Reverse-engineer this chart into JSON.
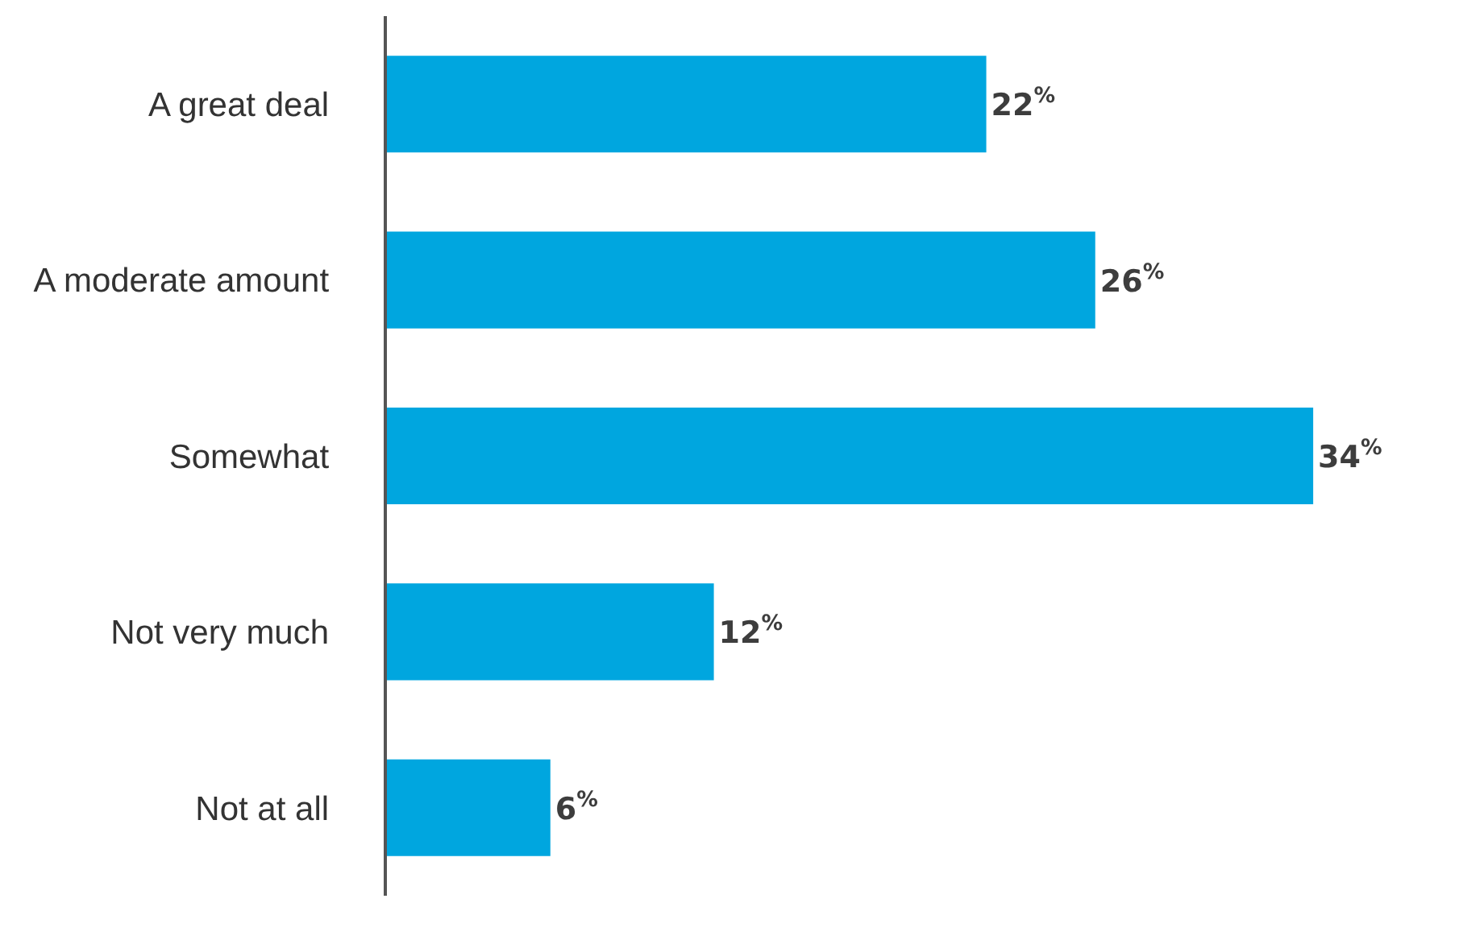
{
  "chart_data": {
    "type": "bar",
    "orientation": "horizontal",
    "categories": [
      "A great deal",
      "A moderate amount",
      "Somewhat",
      "Not very much",
      "Not at all"
    ],
    "values": [
      22,
      26,
      34,
      12,
      6
    ],
    "value_labels": [
      "22$^{%}$",
      "26$^{%}$",
      "34$^{%}$",
      "12$^{%}$",
      "6$^{%}$"
    ],
    "color": "#00a6df",
    "tick_labels": "y"
  }
}
